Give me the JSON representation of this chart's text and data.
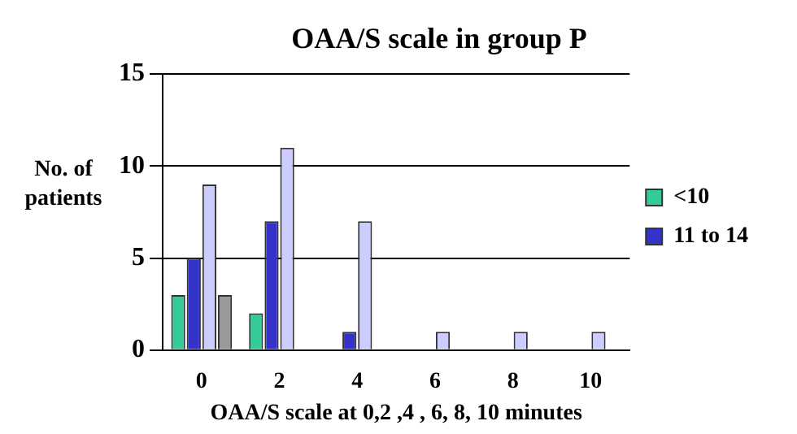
{
  "chart_data": {
    "type": "bar",
    "title": "OAA/S scale in group P",
    "xlabel": "OAA/S scale at 0,2 ,4 , 6, 8, 10 minutes",
    "ylabel": "No. of patients",
    "categories": [
      "0",
      "2",
      "4",
      "6",
      "8",
      "10"
    ],
    "series": [
      {
        "name": "<10",
        "color": "#33cc99",
        "values": [
          3,
          2,
          0,
          0,
          0,
          0
        ]
      },
      {
        "name": "11 to 14",
        "color": "#3333cc",
        "values": [
          5,
          7,
          1,
          0,
          0,
          0
        ]
      },
      {
        "color": "#ccccff",
        "values": [
          9,
          11,
          7,
          1,
          1,
          1
        ]
      },
      {
        "color": "#999999",
        "values": [
          3,
          0,
          0,
          0,
          0,
          0
        ]
      }
    ],
    "ylim": [
      0,
      15
    ],
    "yticks": [
      0,
      5,
      10,
      15
    ],
    "grid": "y",
    "legend": "right"
  }
}
